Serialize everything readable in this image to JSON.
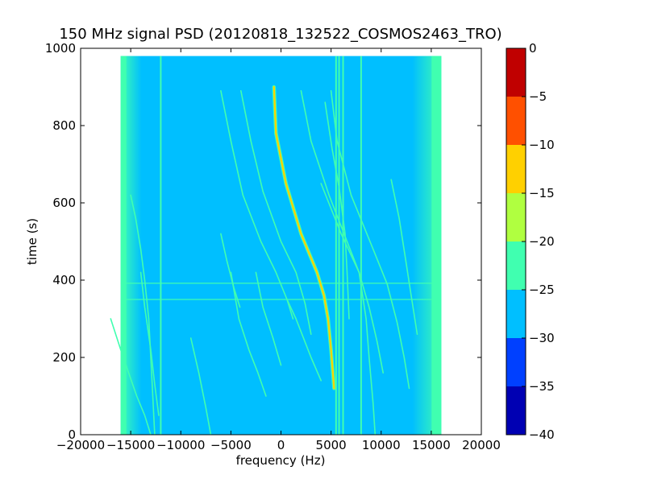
{
  "chart_data": {
    "type": "heatmap",
    "title": "150 MHz signal PSD (20120818_132522_COSMOS2463_TRO)",
    "xlabel": "frequency (Hz)",
    "ylabel": "time (s)",
    "xlim": [
      -20000,
      20000
    ],
    "ylim": [
      0,
      1000
    ],
    "x_ticks": [
      -20000,
      -15000,
      -10000,
      -5000,
      0,
      5000,
      10000,
      15000,
      20000
    ],
    "y_ticks": [
      0,
      200,
      400,
      600,
      800,
      1000
    ],
    "data_extent": {
      "freq_min": -16000,
      "freq_max": 16000,
      "time_min": 0,
      "time_max": 980
    },
    "background_level": -27.5,
    "edge_level": -22.5,
    "colorbar": {
      "ticks": [
        0,
        -5,
        -10,
        -15,
        -20,
        -25,
        -30,
        -35,
        -40
      ],
      "levels": [
        {
          "from": -40,
          "to": -35,
          "color": "#0000b3"
        },
        {
          "from": -35,
          "to": -30,
          "color": "#0040ff"
        },
        {
          "from": -30,
          "to": -25,
          "color": "#00bfff"
        },
        {
          "from": -25,
          "to": -20,
          "color": "#40ffb0"
        },
        {
          "from": -20,
          "to": -15,
          "color": "#b0ff40"
        },
        {
          "from": -15,
          "to": -10,
          "color": "#ffd000"
        },
        {
          "from": -10,
          "to": -5,
          "color": "#ff5000"
        },
        {
          "from": -5,
          "to": 0,
          "color": "#c00000"
        }
      ]
    },
    "vertical_lines": [
      {
        "freq": -12000,
        "t0": 0,
        "t1": 980,
        "level": -22.5
      },
      {
        "freq": 5500,
        "t0": 0,
        "t1": 980,
        "level": -22.5
      },
      {
        "freq": 5800,
        "t0": 0,
        "t1": 980,
        "level": -22.5
      },
      {
        "freq": 6200,
        "t0": 0,
        "t1": 980,
        "level": -22.5
      },
      {
        "freq": 8000,
        "t0": 0,
        "t1": 980,
        "level": -22.5
      }
    ],
    "horizontal_lines": [
      {
        "time": 350,
        "f0": -16000,
        "f1": 16000,
        "level": -22.5
      },
      {
        "time": 392,
        "f0": -16000,
        "f1": 16000,
        "level": -22.5
      }
    ],
    "traces": [
      {
        "points": [
          [
            -700,
            900
          ],
          [
            -500,
            780
          ],
          [
            500,
            650
          ],
          [
            2000,
            520
          ],
          [
            3600,
            420
          ],
          [
            4300,
            360
          ],
          [
            4700,
            300
          ],
          [
            5000,
            220
          ],
          [
            5300,
            120
          ]
        ],
        "level": -12.5
      },
      {
        "points": [
          [
            -6000,
            890
          ],
          [
            -5000,
            760
          ],
          [
            -3800,
            620
          ],
          [
            -2000,
            500
          ],
          [
            -500,
            420
          ],
          [
            600,
            350
          ],
          [
            1200,
            300
          ]
        ],
        "level": -22.5
      },
      {
        "points": [
          [
            -4000,
            890
          ],
          [
            -3000,
            760
          ],
          [
            -1800,
            630
          ],
          [
            0,
            500
          ],
          [
            1500,
            420
          ],
          [
            2400,
            340
          ],
          [
            3000,
            260
          ]
        ],
        "level": -22.5
      },
      {
        "points": [
          [
            2000,
            890
          ],
          [
            3000,
            760
          ],
          [
            4800,
            620
          ],
          [
            6600,
            500
          ],
          [
            7800,
            420
          ],
          [
            8800,
            330
          ],
          [
            9600,
            240
          ],
          [
            10200,
            160
          ]
        ],
        "level": -22.5
      },
      {
        "points": [
          [
            5000,
            890
          ],
          [
            5600,
            760
          ],
          [
            7000,
            620
          ],
          [
            9200,
            480
          ],
          [
            10600,
            390
          ],
          [
            11600,
            290
          ],
          [
            12300,
            200
          ],
          [
            12800,
            120
          ]
        ],
        "level": -22.5
      },
      {
        "points": [
          [
            4000,
            650
          ],
          [
            6000,
            520
          ],
          [
            7800,
            420
          ],
          [
            8500,
            300
          ],
          [
            8800,
            200
          ],
          [
            9200,
            80
          ],
          [
            9400,
            0
          ]
        ],
        "level": -22.5
      },
      {
        "points": [
          [
            11000,
            660
          ],
          [
            11800,
            560
          ],
          [
            12400,
            460
          ],
          [
            13000,
            360
          ],
          [
            13600,
            260
          ]
        ],
        "level": -22.5
      },
      {
        "points": [
          [
            -15000,
            620
          ],
          [
            -14500,
            560
          ],
          [
            -14000,
            480
          ],
          [
            -13600,
            400
          ],
          [
            -13200,
            300
          ],
          [
            -13000,
            200
          ],
          [
            -12800,
            100
          ],
          [
            -12600,
            0
          ]
        ],
        "level": -22.5
      },
      {
        "points": [
          [
            -17000,
            300
          ],
          [
            -16000,
            220
          ],
          [
            -15200,
            160
          ],
          [
            -14400,
            100
          ],
          [
            -13600,
            50
          ],
          [
            -13000,
            0
          ]
        ],
        "level": -22.5
      },
      {
        "points": [
          [
            -14000,
            420
          ],
          [
            -13600,
            330
          ],
          [
            -13000,
            220
          ],
          [
            -12600,
            130
          ],
          [
            -12200,
            50
          ]
        ],
        "level": -22.5
      },
      {
        "points": [
          [
            -5000,
            420
          ],
          [
            -4200,
            300
          ],
          [
            -3200,
            220
          ],
          [
            -2300,
            160
          ],
          [
            -1500,
            100
          ]
        ],
        "level": -22.5
      },
      {
        "points": [
          [
            -2500,
            420
          ],
          [
            -1800,
            330
          ],
          [
            -800,
            250
          ],
          [
            0,
            180
          ]
        ],
        "level": -22.5
      },
      {
        "points": [
          [
            600,
            350
          ],
          [
            1500,
            300
          ],
          [
            3000,
            200
          ],
          [
            4000,
            140
          ]
        ],
        "level": -22.5
      },
      {
        "points": [
          [
            4400,
            860
          ],
          [
            5100,
            740
          ],
          [
            5800,
            640
          ],
          [
            6400,
            520
          ],
          [
            6600,
            420
          ],
          [
            6800,
            300
          ]
        ],
        "level": -22.5
      },
      {
        "points": [
          [
            -9000,
            250
          ],
          [
            -8200,
            160
          ],
          [
            -7500,
            70
          ],
          [
            -7000,
            0
          ]
        ],
        "level": -22.5
      },
      {
        "points": [
          [
            -6000,
            520
          ],
          [
            -5400,
            450
          ],
          [
            -4700,
            380
          ],
          [
            -4100,
            330
          ]
        ],
        "level": -22.5
      }
    ]
  }
}
